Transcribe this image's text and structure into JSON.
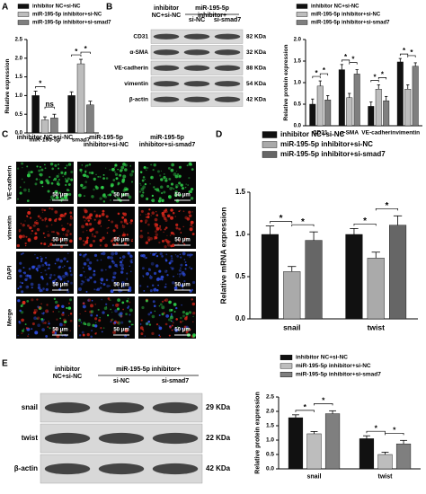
{
  "panel_labels": [
    "A",
    "B",
    "C",
    "D",
    "E"
  ],
  "chart_data": [
    {
      "type": "bar",
      "ylabel": "Relative expression",
      "categories": [
        "miR-195-5p",
        "smad7"
      ],
      "series": [
        {
          "name": "inhibitor NC+si-NC",
          "color": "#111111",
          "values": [
            1,
            1
          ],
          "errors": [
            0.12,
            0.1
          ]
        },
        {
          "name": "miR-195-5p inhibitor+si-NC",
          "color": "#bdbdbd",
          "values": [
            0.35,
            1.85
          ],
          "errors": [
            0.08,
            0.12
          ]
        },
        {
          "name": "miR-195-5p inhibitor+si-smad7",
          "color": "#7f7f7f",
          "values": [
            0.4,
            0.75
          ],
          "errors": [
            0.1,
            0.1
          ]
        }
      ],
      "annotations": [
        "*",
        "ns",
        "*",
        "*"
      ],
      "ylim": [
        0,
        2.5
      ],
      "yticks": [
        {
          "value": 0,
          "label": "0.0"
        },
        {
          "value": 0.5,
          "label": "0.5"
        },
        {
          "value": 1,
          "label": "1.0"
        },
        {
          "value": 1.5,
          "label": "1.5"
        },
        {
          "value": 2,
          "label": "2.0"
        },
        {
          "value": 2.5,
          "label": "2.5"
        }
      ]
    },
    {
      "type": "bar",
      "ylabel": "Relative protein expression",
      "categories": [
        "CD31",
        "α-SMA",
        "VE-cadherin",
        "vimentin"
      ],
      "series": [
        {
          "name": "inhibitor NC+si-NC",
          "color": "#111111",
          "values": [
            0.5,
            1.3,
            0.45,
            1.48
          ],
          "errors": [
            0.12,
            0.12,
            0.1,
            0.08
          ]
        },
        {
          "name": "miR-195-5p inhibitor+si-NC",
          "color": "#bdbdbd",
          "values": [
            0.92,
            0.65,
            0.85,
            0.85
          ],
          "errors": [
            0.12,
            0.1,
            0.1,
            0.1
          ]
        },
        {
          "name": "miR-195-5p inhibitor+si-smad7",
          "color": "#7f7f7f",
          "values": [
            0.6,
            1.2,
            0.58,
            1.38
          ],
          "errors": [
            0.1,
            0.1,
            0.1,
            0.08
          ]
        }
      ],
      "annotations": [
        "*",
        "*",
        "*",
        "*",
        "*",
        "*",
        "*",
        "*"
      ],
      "ylim": [
        0,
        2
      ],
      "yticks": [
        {
          "value": 0,
          "label": "0.0"
        },
        {
          "value": 0.5,
          "label": "0.5"
        },
        {
          "value": 1,
          "label": "1.0"
        },
        {
          "value": 1.5,
          "label": "1.5"
        },
        {
          "value": 2,
          "label": "2.0"
        }
      ]
    },
    {
      "type": "bar",
      "ylabel": "Relative mRNA expression",
      "categories": [
        "snail",
        "twist"
      ],
      "series": [
        {
          "name": "inhibitor NC+si-NC",
          "color": "#111111",
          "values": [
            1,
            1
          ],
          "errors": [
            0.1,
            0.07
          ]
        },
        {
          "name": "miR-195-5p inhibitor+si-NC",
          "color": "#aaaaaa",
          "values": [
            0.56,
            0.72
          ],
          "errors": [
            0.06,
            0.07
          ]
        },
        {
          "name": "miR-195-5p inhibitor+si-smad7",
          "color": "#666666",
          "values": [
            0.93,
            1.11
          ],
          "errors": [
            0.1,
            0.11
          ]
        }
      ],
      "annotations": [
        "*",
        "*",
        "*",
        "*"
      ],
      "ylim": [
        0,
        1.5
      ],
      "yticks": [
        {
          "value": 0,
          "label": "0.0"
        },
        {
          "value": 0.5,
          "label": "0.5"
        },
        {
          "value": 1,
          "label": "1.0"
        },
        {
          "value": 1.5,
          "label": "1.5"
        }
      ]
    },
    {
      "type": "bar",
      "ylabel": "Relative protein expression",
      "categories": [
        "snail",
        "twist"
      ],
      "series": [
        {
          "name": "inhibitor NC+si-NC",
          "color": "#111111",
          "values": [
            1.78,
            1.05
          ],
          "errors": [
            0.1,
            0.1
          ]
        },
        {
          "name": "miR-195-5p inhibitor+si-NC",
          "color": "#bdbdbd",
          "values": [
            1.22,
            0.5
          ],
          "errors": [
            0.08,
            0.08
          ]
        },
        {
          "name": "miR-195-5p inhibitor+si-smad7",
          "color": "#7f7f7f",
          "values": [
            1.92,
            0.87
          ],
          "errors": [
            0.1,
            0.12
          ]
        }
      ],
      "annotations": [
        "*",
        "*",
        "*",
        "*"
      ],
      "ylim": [
        0,
        2.5
      ],
      "yticks": [
        {
          "value": 0,
          "label": "0.0"
        },
        {
          "value": 0.5,
          "label": "0.5"
        },
        {
          "value": 1,
          "label": "1.0"
        },
        {
          "value": 1.5,
          "label": "1.5"
        },
        {
          "value": 2,
          "label": "2.0"
        },
        {
          "value": 2.5,
          "label": "2.5"
        }
      ]
    }
  ],
  "blot_B": {
    "control": "inhibitor NC+si-NC",
    "group": "miR-195-5p inhibitor+",
    "lanes": [
      "si-NC",
      "si-smad7"
    ],
    "rows": [
      {
        "label": "CD31",
        "size": "82 KDa"
      },
      {
        "label": "α-SMA",
        "size": "32 KDa"
      },
      {
        "label": "VE-cadherin",
        "size": "88 KDa"
      },
      {
        "label": "vimentin",
        "size": "54 KDa"
      },
      {
        "label": "β-actin",
        "size": "42 KDa"
      }
    ]
  },
  "images_C": {
    "columns": [
      "inhibitor NC+si-NC",
      "miR-195-5p inhibitor+si-NC",
      "miR-195-5p inhibitor+si-smad7"
    ],
    "rows": [
      "VE-cadherin",
      "vimentin",
      "DAPI",
      "Merge"
    ],
    "scale_bar": "50 μm"
  },
  "blot_E": {
    "control": "inhibitor NC+si-NC",
    "group": "miR-195-5p inhibitor+",
    "lanes": [
      "si-NC",
      "si-smad7"
    ],
    "rows": [
      {
        "label": "snail",
        "size": "29 KDa"
      },
      {
        "label": "twist",
        "size": "22 KDa"
      },
      {
        "label": "β-actin",
        "size": "42 KDa"
      }
    ]
  }
}
